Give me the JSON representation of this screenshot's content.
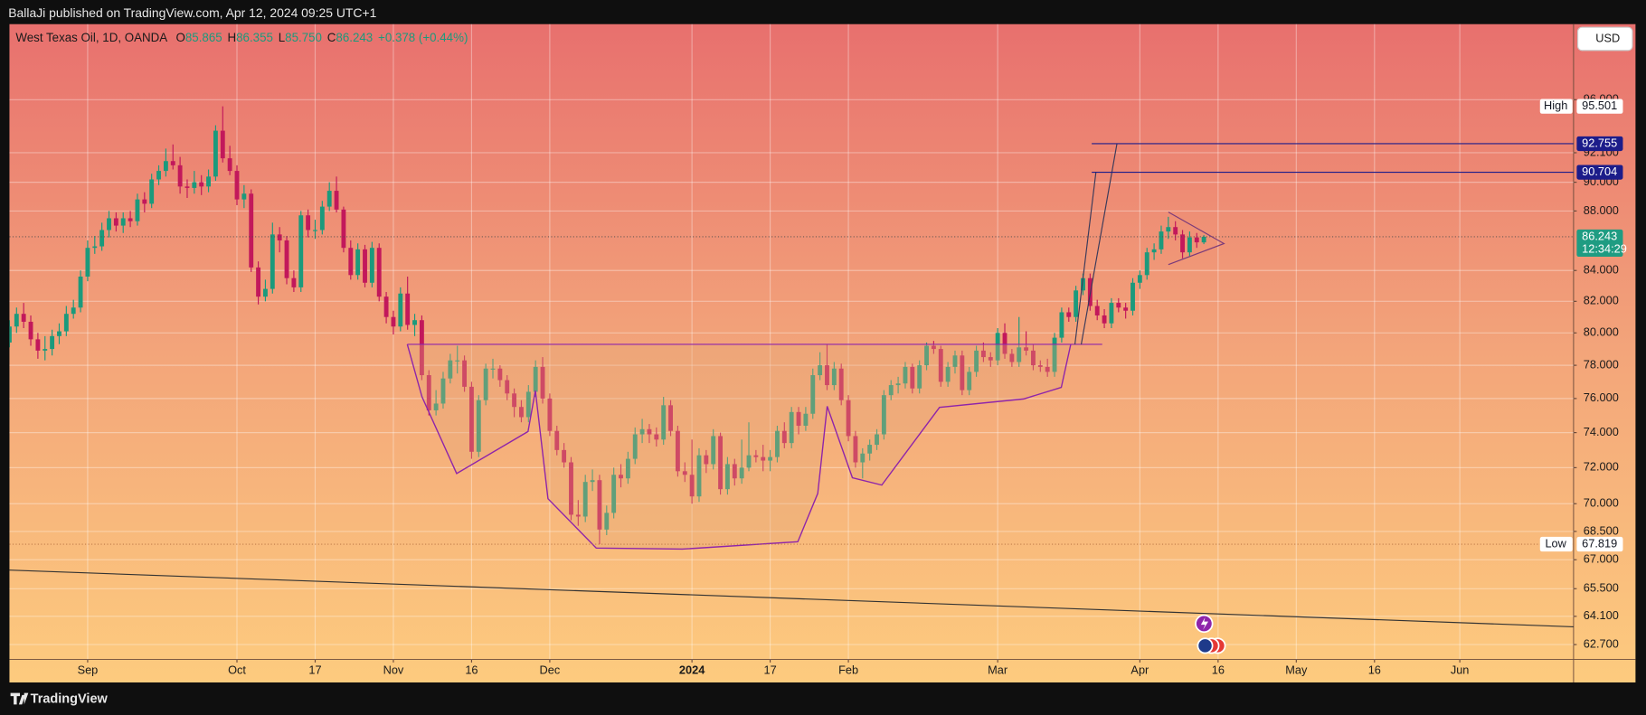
{
  "header": {
    "published": "BallaJi published on TradingView.com, Apr 12, 2024 09:25 UTC+1"
  },
  "footer": {
    "brand": "TradingView"
  },
  "chart_data": {
    "type": "candlestick",
    "symbol": "West Texas Oil, 1D, OANDA",
    "ohlc_legend": [
      {
        "label": "O",
        "value": "85.865"
      },
      {
        "label": "H",
        "value": "86.355"
      },
      {
        "label": "L",
        "value": "85.750"
      },
      {
        "label": "C",
        "value": "86.243"
      }
    ],
    "change": "+0.378 (+0.44%)",
    "currency": "USD",
    "up_color": "#1b9a7c",
    "down_color": "#c2185b",
    "log_scale": true,
    "grid": true,
    "xlim": [
      0,
      220
    ],
    "ylim": [
      61.98,
      101.84
    ],
    "xticks": [
      {
        "value": 11,
        "label": "Sep"
      },
      {
        "value": 32,
        "label": "Oct"
      },
      {
        "value": 43,
        "label": "17"
      },
      {
        "value": 54,
        "label": "Nov"
      },
      {
        "value": 65,
        "label": "16"
      },
      {
        "value": 76,
        "label": "Dec"
      },
      {
        "value": 96,
        "label": "2024",
        "bold": true
      },
      {
        "value": 107,
        "label": "17"
      },
      {
        "value": 118,
        "label": "Feb"
      },
      {
        "value": 139,
        "label": "Mar"
      },
      {
        "value": 159,
        "label": "Apr"
      },
      {
        "value": 170,
        "label": "16"
      },
      {
        "value": 181,
        "label": "May"
      },
      {
        "value": 192,
        "label": "16"
      },
      {
        "value": 204,
        "label": "Jun"
      }
    ],
    "yticks": [
      {
        "value": 62.7,
        "label": "62.700"
      },
      {
        "value": 64.1,
        "label": "64.100"
      },
      {
        "value": 65.5,
        "label": "65.500"
      },
      {
        "value": 67,
        "label": "67.000"
      },
      {
        "value": 68.5,
        "label": "68.500"
      },
      {
        "value": 70,
        "label": "70.000"
      },
      {
        "value": 72,
        "label": "72.000"
      },
      {
        "value": 74,
        "label": "74.000"
      },
      {
        "value": 76,
        "label": "76.000"
      },
      {
        "value": 78,
        "label": "78.000"
      },
      {
        "value": 80,
        "label": "80.000"
      },
      {
        "value": 82,
        "label": "82.000"
      },
      {
        "value": 84,
        "label": "84.000"
      },
      {
        "value": 88,
        "label": "88.000"
      },
      {
        "value": 90,
        "label": "90.000"
      },
      {
        "value": 92.1,
        "label": "92.100"
      },
      {
        "value": 96,
        "label": "96.000"
      }
    ],
    "price_marks": [
      {
        "name": "High",
        "value": 95.501,
        "color": "#ffffff",
        "text_color": "#131722"
      },
      {
        "value": 92.755,
        "color": "#1c1c8a",
        "text_color": "#ffffff",
        "line": "solid"
      },
      {
        "value": 90.704,
        "color": "#1c1c8a",
        "text_color": "#ffffff",
        "line": "solid"
      },
      {
        "value": 86.243,
        "color": "#1f9c82",
        "text_color": "#ffffff",
        "countdown": "12:34:29",
        "line": "dotted"
      },
      {
        "name": "Low",
        "value": 67.819,
        "color": "#ffffff",
        "text_color": "#131722",
        "line": "dotted"
      }
    ],
    "ohlc": [
      [
        79.4,
        80.8,
        79.1,
        80.4
      ],
      [
        80.4,
        81.6,
        80.0,
        81.2
      ],
      [
        81.2,
        81.9,
        80.3,
        80.7
      ],
      [
        80.7,
        81.1,
        79.2,
        79.6
      ],
      [
        79.6,
        80.0,
        78.4,
        78.9
      ],
      [
        78.9,
        79.8,
        78.3,
        79.0
      ],
      [
        79.0,
        80.2,
        78.6,
        79.8
      ],
      [
        79.8,
        80.6,
        79.3,
        80.1
      ],
      [
        80.1,
        81.7,
        79.8,
        81.2
      ],
      [
        81.2,
        82.1,
        80.9,
        81.6
      ],
      [
        81.6,
        84.0,
        81.3,
        83.6
      ],
      [
        83.6,
        86.0,
        83.3,
        85.5
      ],
      [
        85.5,
        86.3,
        85.1,
        85.6
      ],
      [
        85.6,
        87.2,
        85.3,
        86.7
      ],
      [
        86.7,
        88.0,
        86.2,
        87.5
      ],
      [
        87.5,
        87.9,
        86.6,
        87.0
      ],
      [
        87.0,
        87.9,
        86.5,
        87.5
      ],
      [
        87.5,
        88.0,
        86.9,
        87.3
      ],
      [
        87.3,
        89.2,
        87.0,
        88.8
      ],
      [
        88.8,
        89.3,
        87.9,
        88.5
      ],
      [
        88.5,
        90.6,
        88.2,
        90.2
      ],
      [
        90.2,
        91.2,
        89.8,
        90.8
      ],
      [
        90.8,
        92.4,
        90.4,
        91.5
      ],
      [
        91.5,
        92.7,
        90.9,
        91.2
      ],
      [
        91.2,
        91.8,
        89.2,
        89.7
      ],
      [
        89.7,
        90.2,
        88.9,
        89.6
      ],
      [
        89.6,
        90.8,
        89.2,
        90.0
      ],
      [
        90.0,
        90.5,
        89.1,
        89.7
      ],
      [
        89.7,
        90.9,
        89.3,
        90.4
      ],
      [
        90.4,
        94.1,
        90.1,
        93.7
      ],
      [
        93.7,
        95.501,
        91.4,
        91.7
      ],
      [
        91.7,
        92.6,
        90.5,
        90.8
      ],
      [
        90.8,
        91.2,
        88.4,
        88.8
      ],
      [
        88.8,
        89.8,
        88.2,
        89.2
      ],
      [
        89.2,
        89.5,
        83.9,
        84.2
      ],
      [
        84.2,
        84.6,
        81.8,
        82.3
      ],
      [
        82.3,
        83.4,
        82.0,
        82.8
      ],
      [
        82.8,
        87.2,
        82.5,
        86.4
      ],
      [
        86.4,
        86.9,
        85.2,
        86.0
      ],
      [
        86.0,
        86.3,
        83.1,
        83.5
      ],
      [
        83.5,
        84.0,
        82.6,
        82.9
      ],
      [
        82.9,
        88.0,
        82.6,
        87.7
      ],
      [
        87.7,
        88.1,
        86.2,
        86.7
      ],
      [
        86.7,
        87.4,
        86.1,
        86.7
      ],
      [
        86.7,
        88.7,
        86.4,
        88.3
      ],
      [
        88.3,
        90.0,
        88.0,
        89.4
      ],
      [
        89.4,
        90.4,
        87.9,
        88.1
      ],
      [
        88.1,
        88.3,
        85.2,
        85.5
      ],
      [
        85.5,
        86.0,
        83.4,
        83.7
      ],
      [
        83.7,
        85.8,
        83.4,
        85.4
      ],
      [
        85.4,
        85.7,
        82.9,
        83.2
      ],
      [
        83.2,
        85.9,
        82.9,
        85.5
      ],
      [
        85.5,
        85.8,
        82.0,
        82.3
      ],
      [
        82.3,
        82.6,
        80.6,
        81.0
      ],
      [
        81.0,
        81.4,
        79.9,
        80.4
      ],
      [
        80.4,
        82.9,
        80.1,
        82.5
      ],
      [
        82.5,
        83.6,
        80.2,
        80.5
      ],
      [
        80.5,
        81.2,
        79.8,
        80.8
      ],
      [
        80.8,
        81.1,
        77.1,
        77.4
      ],
      [
        77.4,
        77.7,
        75.0,
        75.3
      ],
      [
        75.3,
        76.5,
        75.0,
        75.7
      ],
      [
        75.7,
        77.6,
        75.4,
        77.2
      ],
      [
        77.2,
        78.7,
        76.9,
        78.3
      ],
      [
        78.3,
        79.2,
        77.5,
        78.3
      ],
      [
        78.3,
        78.6,
        76.4,
        76.7
      ],
      [
        76.7,
        77.0,
        72.5,
        72.9
      ],
      [
        72.9,
        76.2,
        72.6,
        75.9
      ],
      [
        75.9,
        78.1,
        75.6,
        77.8
      ],
      [
        77.8,
        78.4,
        77.2,
        77.8
      ],
      [
        77.8,
        78.0,
        76.7,
        77.1
      ],
      [
        77.1,
        77.4,
        75.9,
        76.3
      ],
      [
        76.3,
        76.6,
        74.9,
        75.5
      ],
      [
        75.5,
        75.9,
        74.6,
        74.9
      ],
      [
        74.9,
        76.8,
        74.6,
        76.4
      ],
      [
        76.4,
        78.3,
        76.1,
        77.9
      ],
      [
        77.9,
        78.5,
        75.7,
        76.0
      ],
      [
        76.0,
        76.3,
        73.8,
        74.1
      ],
      [
        74.1,
        74.4,
        72.7,
        73.0
      ],
      [
        73.0,
        73.4,
        72.0,
        72.3
      ],
      [
        72.3,
        72.6,
        69.1,
        69.4
      ],
      [
        69.4,
        70.2,
        68.8,
        69.3
      ],
      [
        69.3,
        71.6,
        69.0,
        71.2
      ],
      [
        71.2,
        71.9,
        70.7,
        71.3
      ],
      [
        71.3,
        71.6,
        67.819,
        68.6
      ],
      [
        68.6,
        69.9,
        68.3,
        69.5
      ],
      [
        69.5,
        72.0,
        69.2,
        71.6
      ],
      [
        71.6,
        72.2,
        70.9,
        71.4
      ],
      [
        71.4,
        72.9,
        71.1,
        72.5
      ],
      [
        72.5,
        74.3,
        72.2,
        73.9
      ],
      [
        73.9,
        74.8,
        73.4,
        74.2
      ],
      [
        74.2,
        74.5,
        73.4,
        73.9
      ],
      [
        73.9,
        74.3,
        73.2,
        73.6
      ],
      [
        73.6,
        76.1,
        73.3,
        75.6
      ],
      [
        75.6,
        75.9,
        73.8,
        74.1
      ],
      [
        74.1,
        74.4,
        71.5,
        71.8
      ],
      [
        71.8,
        72.3,
        71.2,
        71.6
      ],
      [
        71.6,
        73.6,
        70.0,
        70.4
      ],
      [
        70.4,
        73.1,
        70.1,
        72.7
      ],
      [
        72.7,
        73.0,
        71.7,
        72.2
      ],
      [
        72.2,
        74.2,
        71.9,
        73.8
      ],
      [
        73.8,
        74.0,
        70.5,
        70.8
      ],
      [
        70.8,
        72.6,
        70.5,
        72.2
      ],
      [
        72.2,
        72.5,
        71.0,
        71.4
      ],
      [
        71.4,
        73.6,
        71.1,
        72.0
      ],
      [
        72.0,
        74.6,
        71.8,
        72.7
      ],
      [
        72.7,
        73.0,
        72.3,
        72.6
      ],
      [
        72.6,
        73.3,
        71.8,
        72.4
      ],
      [
        72.4,
        73.0,
        71.8,
        72.6
      ],
      [
        72.6,
        74.4,
        72.3,
        74.1
      ],
      [
        74.1,
        74.6,
        73.1,
        73.4
      ],
      [
        73.4,
        75.5,
        73.1,
        75.2
      ],
      [
        75.2,
        75.5,
        73.9,
        74.4
      ],
      [
        74.4,
        75.5,
        74.1,
        75.1
      ],
      [
        75.1,
        77.8,
        74.8,
        77.4
      ],
      [
        77.4,
        78.8,
        77.1,
        78.0
      ],
      [
        78.0,
        79.3,
        76.5,
        76.8
      ],
      [
        76.8,
        78.2,
        76.5,
        77.8
      ],
      [
        77.8,
        78.1,
        75.6,
        75.9
      ],
      [
        75.9,
        76.2,
        73.5,
        73.8
      ],
      [
        73.8,
        74.1,
        72.0,
        72.3
      ],
      [
        72.3,
        73.1,
        71.4,
        72.8
      ],
      [
        72.8,
        73.6,
        72.4,
        73.3
      ],
      [
        73.3,
        74.2,
        73.0,
        73.9
      ],
      [
        73.9,
        76.5,
        73.6,
        76.2
      ],
      [
        76.2,
        77.1,
        75.9,
        76.8
      ],
      [
        76.8,
        77.3,
        76.3,
        76.9
      ],
      [
        76.9,
        78.2,
        76.6,
        77.9
      ],
      [
        77.9,
        78.1,
        76.3,
        76.6
      ],
      [
        76.6,
        78.3,
        76.3,
        78.0
      ],
      [
        78.0,
        79.4,
        77.7,
        79.2
      ],
      [
        79.2,
        79.5,
        78.7,
        79.0
      ],
      [
        79.0,
        79.2,
        76.7,
        77.0
      ],
      [
        77.0,
        78.2,
        76.7,
        77.9
      ],
      [
        77.9,
        78.9,
        77.5,
        78.6
      ],
      [
        78.6,
        78.9,
        76.2,
        76.5
      ],
      [
        76.5,
        77.9,
        76.2,
        77.6
      ],
      [
        77.6,
        79.2,
        77.3,
        78.9
      ],
      [
        78.9,
        79.4,
        78.2,
        78.5
      ],
      [
        78.5,
        78.8,
        77.9,
        78.3
      ],
      [
        78.3,
        80.3,
        78.0,
        80.0
      ],
      [
        80.0,
        80.6,
        78.4,
        78.7
      ],
      [
        78.7,
        79.0,
        77.9,
        78.2
      ],
      [
        78.2,
        81.0,
        77.9,
        79.1
      ],
      [
        79.1,
        80.1,
        78.6,
        78.9
      ],
      [
        78.9,
        79.3,
        77.7,
        78.0
      ],
      [
        78.0,
        78.3,
        77.6,
        77.9
      ],
      [
        77.9,
        78.4,
        77.3,
        77.6
      ],
      [
        77.6,
        80.0,
        77.3,
        79.7
      ],
      [
        79.7,
        81.6,
        79.4,
        81.3
      ],
      [
        81.3,
        81.6,
        80.7,
        81.0
      ],
      [
        81.0,
        83.0,
        80.7,
        82.7
      ],
      [
        82.7,
        83.8,
        82.4,
        83.5
      ],
      [
        83.5,
        83.8,
        81.4,
        81.7
      ],
      [
        81.7,
        82.1,
        80.8,
        81.1
      ],
      [
        81.1,
        81.5,
        80.3,
        80.6
      ],
      [
        80.6,
        82.2,
        80.3,
        81.9
      ],
      [
        81.9,
        82.2,
        81.3,
        81.6
      ],
      [
        81.6,
        81.9,
        80.9,
        81.4
      ],
      [
        81.4,
        83.5,
        81.1,
        83.2
      ],
      [
        83.2,
        84.0,
        82.8,
        83.7
      ],
      [
        83.7,
        85.5,
        83.4,
        85.2
      ],
      [
        85.2,
        85.8,
        84.7,
        85.4
      ],
      [
        85.4,
        87.0,
        85.1,
        86.6
      ],
      [
        86.6,
        87.6,
        86.1,
        86.9
      ],
      [
        86.9,
        87.3,
        86.0,
        86.4
      ],
      [
        86.4,
        86.7,
        84.8,
        85.2
      ],
      [
        85.2,
        86.6,
        84.9,
        86.2
      ],
      [
        86.2,
        86.5,
        85.5,
        85.87
      ],
      [
        85.865,
        86.355,
        85.75,
        86.243
      ]
    ]
  }
}
